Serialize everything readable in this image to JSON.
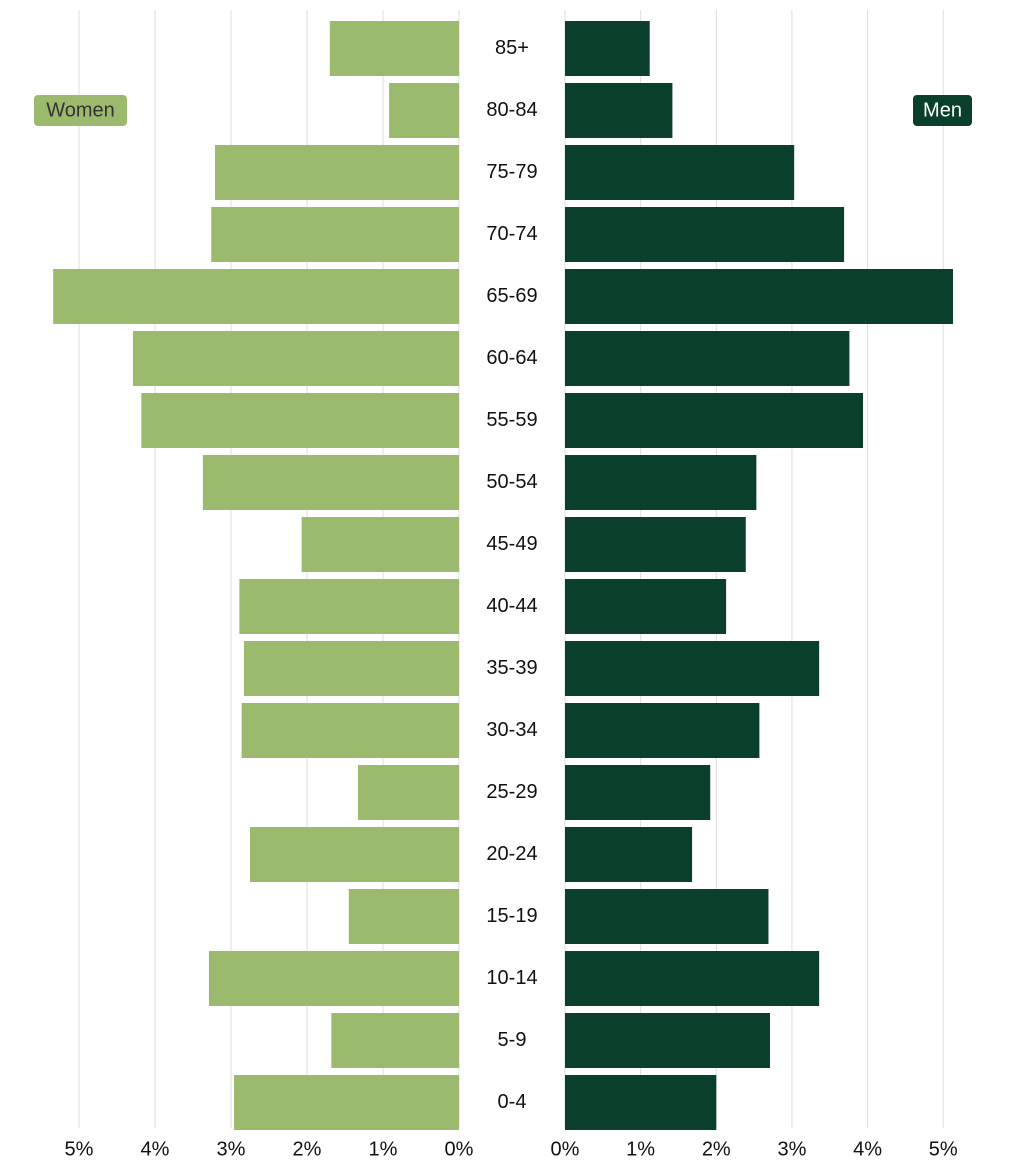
{
  "chart_data": {
    "type": "pyramid",
    "categories": [
      "85+",
      "80-84",
      "75-79",
      "70-74",
      "65-69",
      "60-64",
      "55-59",
      "50-54",
      "45-49",
      "40-44",
      "35-39",
      "30-34",
      "25-29",
      "20-24",
      "15-19",
      "10-14",
      "5-9",
      "0-4"
    ],
    "series": [
      {
        "name": "Women",
        "color": "#9cba6e",
        "values": [
          1.7,
          0.92,
          3.21,
          3.26,
          5.34,
          4.29,
          4.18,
          3.37,
          2.07,
          2.89,
          2.83,
          2.86,
          1.33,
          2.75,
          1.45,
          3.29,
          1.68,
          2.96
        ]
      },
      {
        "name": "Men",
        "color": "#0a3f2c",
        "values": [
          1.12,
          1.42,
          3.03,
          3.69,
          5.13,
          3.76,
          3.94,
          2.53,
          2.39,
          2.13,
          3.36,
          2.57,
          1.92,
          1.68,
          2.69,
          3.36,
          2.71,
          2.0
        ]
      }
    ],
    "xlim": [
      0,
      5.5
    ],
    "xticks": [
      {
        "value": 0,
        "label": "0%"
      },
      {
        "value": 1,
        "label": "1%"
      },
      {
        "value": 2,
        "label": "2%"
      },
      {
        "value": 3,
        "label": "3%"
      },
      {
        "value": 4,
        "label": "4%"
      },
      {
        "value": 5,
        "label": "5%"
      }
    ],
    "grid": true
  }
}
